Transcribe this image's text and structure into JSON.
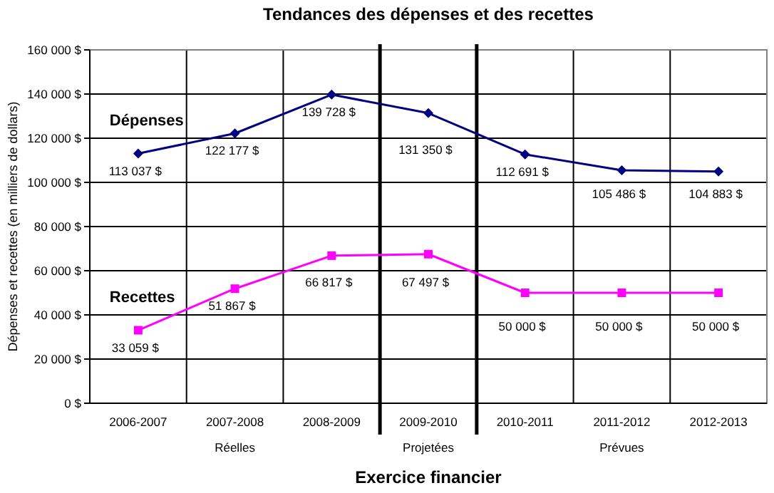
{
  "chart_data": {
    "type": "line",
    "title": "Tendances des dépenses et des recettes",
    "xlabel": "Exercice financier",
    "ylabel": "Dépenses et recettes (en milliers de dollars)",
    "categories": [
      "2006-2007",
      "2007-2008",
      "2008-2009",
      "2009-2010",
      "2010-2011",
      "2011-2012",
      "2012-2013"
    ],
    "series": [
      {
        "name": "Dépenses",
        "color": "#000080",
        "marker": "diamond",
        "values": [
          113037,
          122177,
          139728,
          131350,
          112691,
          105486,
          104883
        ],
        "value_labels": [
          "113 037 $",
          "122 177 $",
          "139 728 $",
          "131 350 $",
          "112 691 $",
          "105 486 $",
          "104 883 $"
        ]
      },
      {
        "name": "Recettes",
        "color": "#ff00ff",
        "marker": "square",
        "values": [
          33059,
          51867,
          66817,
          67497,
          50000,
          50000,
          50000
        ],
        "value_labels": [
          "33 059 $",
          "51 867 $",
          "66 817 $",
          "67 497 $",
          "50 000 $",
          "50 000 $",
          "50 000 $"
        ]
      }
    ],
    "ylim": [
      0,
      160000
    ],
    "yticks": [
      {
        "value": 0,
        "label": "0 $"
      },
      {
        "value": 20000,
        "label": "20 000 $"
      },
      {
        "value": 40000,
        "label": "40 000 $"
      },
      {
        "value": 60000,
        "label": "60 000 $"
      },
      {
        "value": 80000,
        "label": "80 000 $"
      },
      {
        "value": 100000,
        "label": "100 000 $"
      },
      {
        "value": 120000,
        "label": "120 000 $"
      },
      {
        "value": 140000,
        "label": "140 000 $"
      },
      {
        "value": 160000,
        "label": "160 000 $"
      }
    ],
    "annotations": [
      "Réelles",
      "Projetées",
      "Prévues"
    ],
    "grid": true
  }
}
